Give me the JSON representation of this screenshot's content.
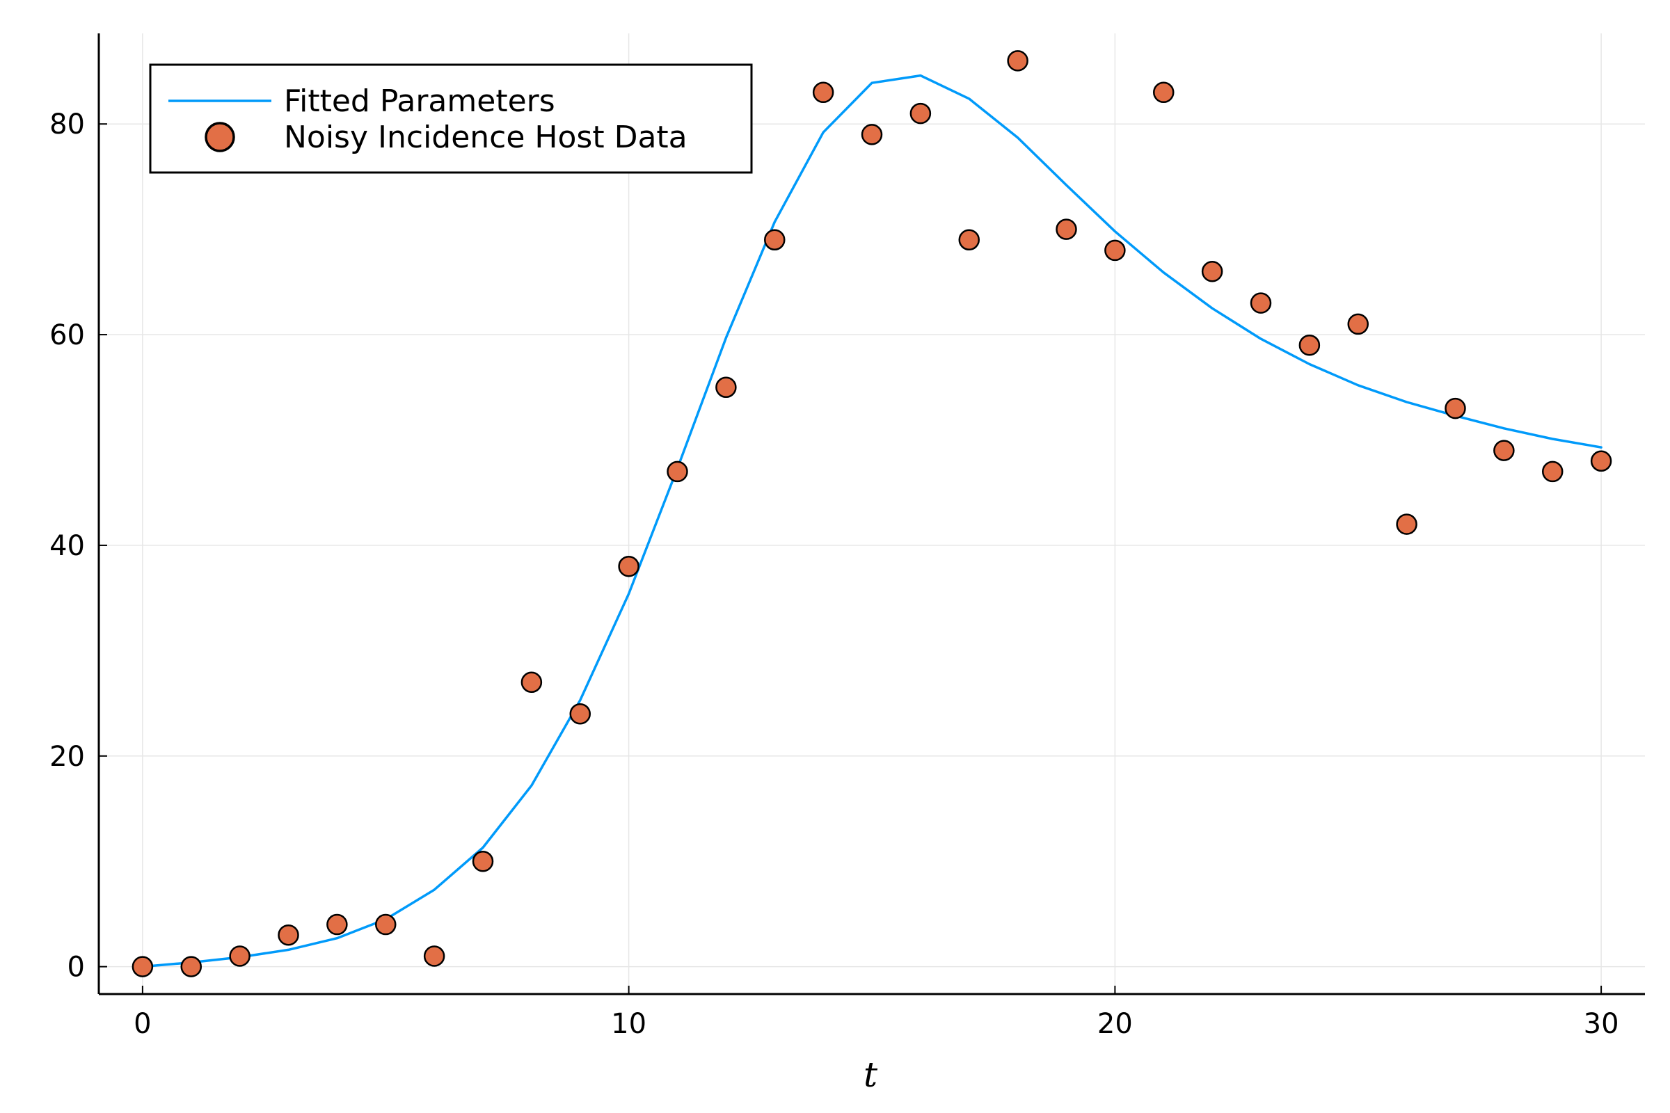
{
  "chart_data": {
    "type": "line",
    "title": "",
    "xlabel": "t",
    "ylabel": "",
    "xlim": [
      -0.9,
      30.9
    ],
    "ylim": [
      -2.6,
      88.6
    ],
    "xticks": [
      0,
      10,
      20,
      30
    ],
    "yticks": [
      0,
      20,
      40,
      60,
      80
    ],
    "xtick_labels": [
      "0",
      "10",
      "20",
      "30"
    ],
    "ytick_labels": [
      "0",
      "20",
      "40",
      "60",
      "80"
    ],
    "grid": true,
    "legend_position": "top-left",
    "series": [
      {
        "name": "Fitted Parameters",
        "kind": "line",
        "color": "#009AFA",
        "x": [
          0,
          1,
          2,
          3,
          4,
          5,
          6,
          7,
          8,
          9,
          10,
          11,
          12,
          13,
          14,
          15,
          16,
          17,
          18,
          19,
          20,
          21,
          22,
          23,
          24,
          25,
          26,
          27,
          28,
          29,
          30
        ],
        "y": [
          0,
          0.4,
          0.9,
          1.6,
          2.7,
          4.5,
          7.3,
          11.3,
          17.2,
          25.3,
          35.4,
          47.3,
          59.7,
          70.7,
          79.2,
          83.9,
          84.6,
          82.4,
          78.7,
          74.2,
          69.8,
          65.9,
          62.5,
          59.6,
          57.2,
          55.2,
          53.6,
          52.3,
          51.1,
          50.1,
          49.3
        ]
      },
      {
        "name": "Noisy Incidence Host Data",
        "kind": "scatter",
        "color": "#E26F46",
        "x": [
          0,
          1,
          2,
          3,
          4,
          5,
          6,
          7,
          8,
          9,
          10,
          11,
          12,
          13,
          14,
          15,
          16,
          17,
          18,
          19,
          20,
          21,
          22,
          23,
          24,
          25,
          26,
          27,
          28,
          29,
          30
        ],
        "y": [
          0,
          0,
          1,
          3,
          4,
          4,
          1,
          10,
          27,
          24,
          38,
          47,
          55,
          69,
          83,
          79,
          81,
          69,
          86,
          70,
          68,
          83,
          66,
          63,
          59,
          61,
          42,
          53,
          49,
          47,
          48
        ]
      }
    ]
  }
}
